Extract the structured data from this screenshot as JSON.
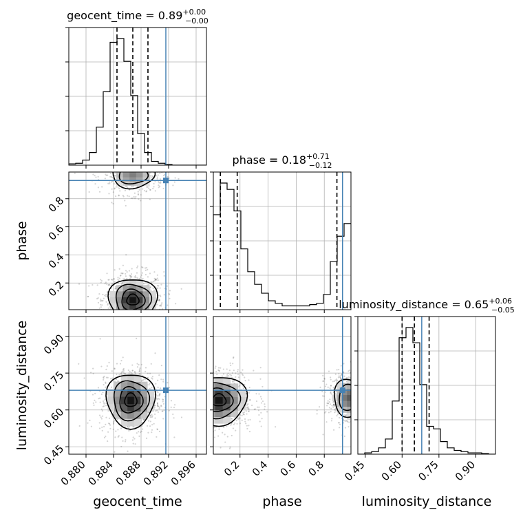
{
  "chart_data": {
    "type": "corner",
    "parameters": [
      {
        "key": "geocent_time",
        "label": "geocent_time",
        "range": [
          0.8775,
          0.8975
        ],
        "ticks": [
          "0.880",
          "0.884",
          "0.888",
          "0.892",
          "0.896"
        ],
        "tick_values": [
          0.88,
          0.884,
          0.888,
          0.892,
          0.896
        ],
        "title": {
          "main": "geocent_time = 0.89",
          "plus": "+0.00",
          "minus": "−0.00"
        },
        "quantiles": [
          0.8845,
          0.8868,
          0.889
        ],
        "truth": 0.8916,
        "histogram": {
          "edges_start": 0.8775,
          "bin_width": 0.001,
          "counts": [
            0.01,
            0.015,
            0.04,
            0.1,
            0.3,
            0.58,
            0.97,
            1.0,
            0.82,
            0.55,
            0.25,
            0.1,
            0.03,
            0.015,
            0.005,
            0,
            0,
            0,
            0,
            0
          ]
        }
      },
      {
        "key": "phase",
        "label": "phase",
        "range": [
          0.01,
          0.99
        ],
        "ticks": [
          "0.2",
          "0.4",
          "0.6",
          "0.8"
        ],
        "tick_values": [
          0.2,
          0.4,
          0.6,
          0.8
        ],
        "title": {
          "main": "phase = 0.18",
          "plus": "+0.71",
          "minus": "−0.12"
        },
        "quantiles": [
          0.06,
          0.18,
          0.89
        ],
        "truth": 0.93,
        "histogram": {
          "edges_start": 0.01,
          "bin_width": 0.049,
          "counts": [
            0.75,
            1.0,
            0.95,
            0.78,
            0.48,
            0.3,
            0.2,
            0.13,
            0.07,
            0.05,
            0.03,
            0.03,
            0.03,
            0.03,
            0.04,
            0.05,
            0.12,
            0.38,
            0.58,
            0.68
          ]
        }
      },
      {
        "key": "luminosity_distance",
        "label": "luminosity_distance",
        "range": [
          0.42,
          0.98
        ],
        "ticks": [
          "0.45",
          "0.60",
          "0.75",
          "0.90"
        ],
        "tick_values": [
          0.45,
          0.6,
          0.75,
          0.9
        ],
        "title": {
          "main": "luminosity_distance = 0.65",
          "plus": "+0.06",
          "minus": "−0.05"
        },
        "quantiles": [
          0.6,
          0.65,
          0.71
        ],
        "truth": 0.68,
        "histogram": {
          "edges_start": 0.42,
          "bin_width": 0.028,
          "counts": [
            0.0,
            0.01,
            0.02,
            0.05,
            0.12,
            0.42,
            0.92,
            1.0,
            0.88,
            0.55,
            0.22,
            0.2,
            0.1,
            0.05,
            0.03,
            0.02,
            0.01,
            0.01,
            0.005,
            0.0
          ]
        }
      }
    ],
    "joint": [
      {
        "x": "geocent_time",
        "y": "phase",
        "modes": [
          {
            "cx": 0.8868,
            "cy": 0.08,
            "sx": 0.0016,
            "sy": 0.07,
            "w": 1.0
          },
          {
            "cx": 0.8868,
            "cy": 0.97,
            "sx": 0.0016,
            "sy": 0.05,
            "w": 0.55
          }
        ]
      },
      {
        "x": "geocent_time",
        "y": "luminosity_distance",
        "modes": [
          {
            "cx": 0.8865,
            "cy": 0.64,
            "sx": 0.0016,
            "sy": 0.05,
            "w": 1.0
          }
        ]
      },
      {
        "x": "phase",
        "y": "luminosity_distance",
        "modes": [
          {
            "cx": 0.05,
            "cy": 0.64,
            "sx": 0.09,
            "sy": 0.045,
            "w": 1.0
          },
          {
            "cx": 0.98,
            "cy": 0.65,
            "sx": 0.06,
            "sy": 0.04,
            "w": 0.7
          }
        ]
      }
    ]
  }
}
